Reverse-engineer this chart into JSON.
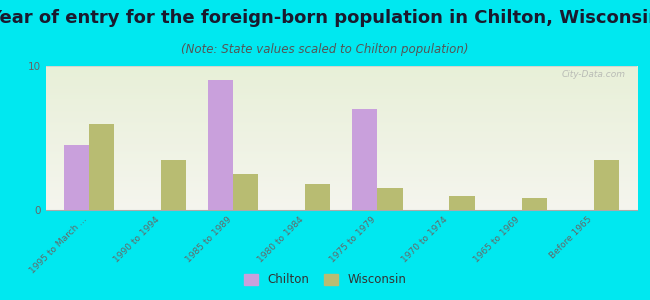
{
  "title": "Year of entry for the foreign-born population in Chilton, Wisconsin",
  "subtitle": "(Note: State values scaled to Chilton population)",
  "categories": [
    "1995 to March ...",
    "1990 to 1994",
    "1985 to 1989",
    "1980 to 1984",
    "1975 to 1979",
    "1970 to 1974",
    "1965 to 1969",
    "Before 1965"
  ],
  "chilton_values": [
    4.5,
    0,
    9.0,
    0,
    7.0,
    0,
    0,
    0
  ],
  "wisconsin_values": [
    6.0,
    3.5,
    2.5,
    1.8,
    1.5,
    1.0,
    0.8,
    3.5
  ],
  "chilton_color": "#c9a0dc",
  "wisconsin_color": "#b8bc72",
  "background_color": "#00e8f0",
  "ylim": [
    0,
    10
  ],
  "yticks": [
    0,
    10
  ],
  "bar_width": 0.35,
  "watermark": "City-Data.com",
  "legend_chilton": "Chilton",
  "legend_wisconsin": "Wisconsin",
  "title_fontsize": 13,
  "subtitle_fontsize": 8.5,
  "title_color": "#1a1a2e",
  "subtitle_color": "#555555",
  "tick_label_color": "#666666"
}
